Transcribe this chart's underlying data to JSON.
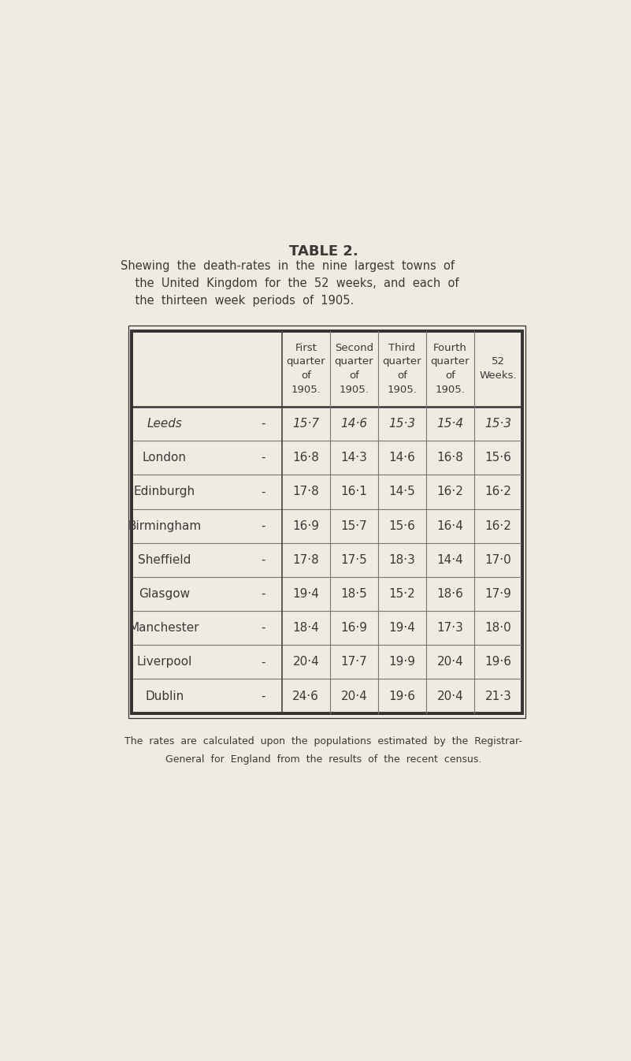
{
  "title": "TABLE 2.",
  "subtitle_lines": [
    "Shewing  the  death-rates  in  the  nine  largest  towns  of",
    "    the  United  Kingdom  for  the  52  weeks,  and  each  of",
    "    the  thirteen  week  periods  of  1905."
  ],
  "col_headers": [
    [
      "First",
      "quarter",
      "of",
      "1905."
    ],
    [
      "Second",
      "quarter",
      "of",
      "1905."
    ],
    [
      "Third",
      "quarter",
      "of",
      "1905."
    ],
    [
      "Fourth",
      "quarter",
      "of",
      "1905."
    ],
    [
      "52",
      "Weeks."
    ]
  ],
  "rows": [
    {
      "city": "Leeds",
      "italic": true,
      "values": [
        "15·7",
        "14·6",
        "15·3",
        "15·4",
        "15·3"
      ]
    },
    {
      "city": "London",
      "italic": false,
      "values": [
        "16·8",
        "14·3",
        "14·6",
        "16·8",
        "15·6"
      ]
    },
    {
      "city": "Edinburgh",
      "italic": false,
      "values": [
        "17·8",
        "16·1",
        "14·5",
        "16·2",
        "16·2"
      ]
    },
    {
      "city": "Birmingham",
      "italic": false,
      "values": [
        "16·9",
        "15·7",
        "15·6",
        "16·4",
        "16·2"
      ]
    },
    {
      "city": "Sheffield",
      "italic": false,
      "values": [
        "17·8",
        "17·5",
        "18·3",
        "14·4",
        "17·0"
      ]
    },
    {
      "city": "Glasgow",
      "italic": false,
      "values": [
        "19·4",
        "18·5",
        "15·2",
        "18·6",
        "17·9"
      ]
    },
    {
      "city": "Manchester",
      "italic": false,
      "values": [
        "18·4",
        "16·9",
        "19·4",
        "17·3",
        "18·0"
      ]
    },
    {
      "city": "Liverpool",
      "italic": false,
      "values": [
        "20·4",
        "17·7",
        "19·9",
        "20·4",
        "19·6"
      ]
    },
    {
      "city": "Dublin",
      "italic": false,
      "values": [
        "24·6",
        "20·4",
        "19·6",
        "20·4",
        "21·3"
      ]
    }
  ],
  "footnote_lines": [
    "The  rates  are  calculated  upon  the  populations  estimated  by  the  Registrar-",
    "General  for  England  from  the  results  of  the  recent  census."
  ],
  "bg_color": "#f0ebe0",
  "text_color": "#3d3838"
}
